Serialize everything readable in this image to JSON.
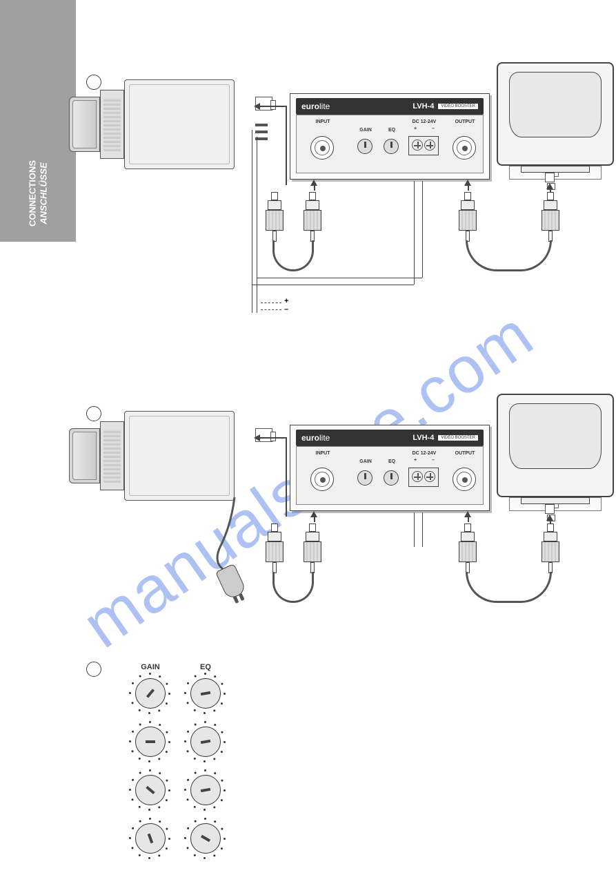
{
  "side_tab": {
    "line1": "CONNECTIONS",
    "line2": "ANSCHLÜSSE"
  },
  "watermark": "manualshive.com",
  "booster": {
    "brand_prefix": "euro",
    "brand_suffix": "lite",
    "model": "LVH-4",
    "badge": "VIDEO BOOSTER",
    "labels": {
      "input": "INPUT",
      "gain": "GAIN",
      "eq": "EQ",
      "dc": "DC 12-24V",
      "output": "OUTPUT",
      "plus": "+",
      "minus": "–"
    }
  },
  "section3": {
    "heads": {
      "gain": "GAIN",
      "eq": "EQ"
    },
    "rows": [
      {
        "gain_angle": -50,
        "eq_angle": -10
      },
      {
        "gain_angle": 0,
        "eq_angle": -10
      },
      {
        "gain_angle": 40,
        "eq_angle": -10
      },
      {
        "gain_angle": 70,
        "eq_angle": 30
      }
    ]
  },
  "power_marks": {
    "plus": "+",
    "minus": "–"
  },
  "colors": {
    "tab_bg": "#a0a0a0",
    "watermark": "#6b8fe8",
    "ink": "#444444"
  }
}
